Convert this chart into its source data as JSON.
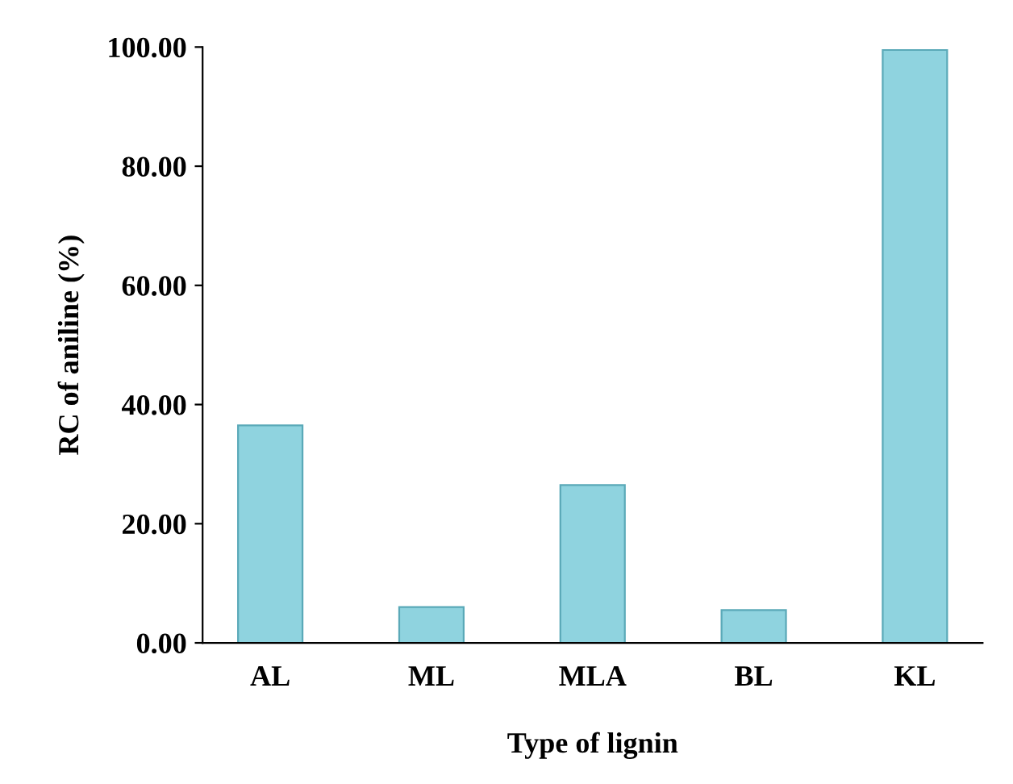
{
  "chart_data": {
    "type": "bar",
    "xlabel": "Type of lignin",
    "ylabel": "RC of aniline (%)",
    "categories": [
      "AL",
      "ML",
      "MLA",
      "BL",
      "KL"
    ],
    "values": [
      36.5,
      6,
      26.5,
      5.5,
      99.5
    ],
    "color": "#8fd3df",
    "ylim": [
      0,
      100
    ],
    "yticks": [
      {
        "value": 0,
        "label": "0.00"
      },
      {
        "value": 20,
        "label": "20.00"
      },
      {
        "value": 40,
        "label": "40.00"
      },
      {
        "value": 60,
        "label": "60.00"
      },
      {
        "value": 80,
        "label": "80.00"
      },
      {
        "value": 100,
        "label": "100.00"
      }
    ]
  }
}
